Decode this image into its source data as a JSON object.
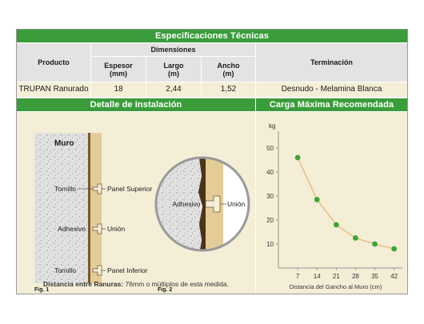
{
  "specs": {
    "title": "Especificaciones Técnicas",
    "col_producto": "Producto",
    "col_dimensiones": "Dimensiones",
    "col_espesor": "Espesor",
    "col_espesor_unit": "(mm)",
    "col_largo": "Largo",
    "col_largo_unit": "(m)",
    "col_ancho": "Ancho",
    "col_ancho_unit": "(m)",
    "col_terminacion": "Terminación",
    "row": {
      "producto": "TRUPAN Ranurado",
      "espesor": "18",
      "largo": "2,44",
      "ancho": "1,52",
      "terminacion": "Desnudo - Melamina Blanca"
    }
  },
  "installation": {
    "title": "Detalle de Instalación",
    "fig1": {
      "wall_label": "Muro",
      "label_tornillo_top": "Tornillo",
      "label_adhesivo": "Adhesivo",
      "label_tornillo_bottom": "Tornillo",
      "label_panel_superior": "Panel Superior",
      "label_union": "Unión",
      "label_panel_inferior": "Panel Inferior",
      "caption": "Fig. 1"
    },
    "fig2": {
      "label_adhesivo": "Adhesivo",
      "label_union": "Unión",
      "caption": "Fig. 2"
    },
    "note_bold": "Distancia entre Ranuras:",
    "note_rest": " 76mm o múltiplos de esta medida."
  },
  "chart_title": "Carga Máxima Recomendada",
  "colors": {
    "header_green": "#3a9c3a",
    "panel_bg": "#f4eed7",
    "point_green": "#3aa535",
    "line_tan": "#e8c089",
    "wood": "#e3cc96"
  },
  "chart_data": {
    "type": "line",
    "title": "Carga Máxima Recomendada",
    "xlabel": "Distancia del Gancho al Muro (cm)",
    "ylabel": "kg",
    "x": [
      7,
      14,
      21,
      28,
      35,
      42
    ],
    "y": [
      46,
      28.5,
      18,
      12.5,
      10,
      8
    ],
    "xticks": [
      "7",
      "14",
      "21",
      "28",
      "35",
      "42"
    ],
    "yticks": [
      "10",
      "20",
      "30",
      "40",
      "50"
    ],
    "xlim": [
      0,
      45
    ],
    "ylim": [
      0,
      55
    ],
    "grid": false,
    "legend": "none"
  }
}
